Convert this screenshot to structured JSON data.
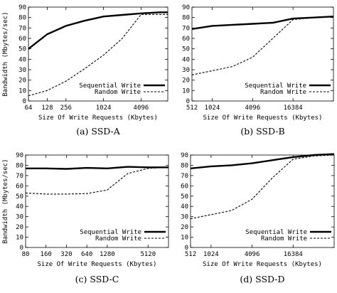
{
  "charts": [
    {
      "caption": "(a) SSD-A",
      "xlabel": "Size Of Write Requests (Kbytes)",
      "ylabel": "Bandwidth (Mbytes/sec)",
      "xticks": [
        "64",
        "128",
        "256",
        "1024",
        "4096"
      ],
      "yticks": [
        "0",
        "10",
        "20",
        "30",
        "40",
        "50",
        "60",
        "70",
        "80",
        "90"
      ],
      "legend": [
        "Sequential Write",
        "Random Write"
      ]
    },
    {
      "caption": "(b) SSD-B",
      "xlabel": "Size Of Write Requests (Kbytes)",
      "ylabel": "",
      "xticks": [
        "512",
        "1024",
        "4096",
        "16384"
      ],
      "yticks": [
        "0",
        "10",
        "20",
        "30",
        "40",
        "50",
        "60",
        "70",
        "80",
        "90"
      ],
      "legend": [
        "Sequential Write",
        "Random Write"
      ]
    },
    {
      "caption": "(c) SSD-C",
      "xlabel": "Size Of Write Requests (Kbytes)",
      "ylabel": "Bandwidth (Mbytes/sec)",
      "xticks": [
        "80",
        "160",
        "320",
        "640",
        "1280",
        "5120"
      ],
      "yticks": [
        "0",
        "10",
        "20",
        "30",
        "40",
        "50",
        "60",
        "70",
        "80",
        "90"
      ],
      "legend": [
        "Sequential Write",
        "Random Write"
      ]
    },
    {
      "caption": "(d) SSD-D",
      "xlabel": "Size Of Write Requests (Kbytes)",
      "ylabel": "",
      "xticks": [
        "512",
        "1024",
        "4096",
        "16384"
      ],
      "yticks": [
        "0",
        "10",
        "20",
        "30",
        "40",
        "50",
        "60",
        "70",
        "80",
        "90"
      ],
      "legend": [
        "Sequential Write",
        "Random Write"
      ]
    }
  ],
  "chart_data": [
    {
      "type": "line",
      "title": "(a) SSD-A",
      "xlabel": "Size Of Write Requests (Kbytes)",
      "ylabel": "Bandwidth (Mbytes/sec)",
      "xscale": "log2",
      "xlim": [
        64,
        11000
      ],
      "ylim": [
        0,
        90
      ],
      "grid": false,
      "legend_position": "bottom-right",
      "series": [
        {
          "name": "Sequential Write",
          "style": "solid",
          "x": [
            64,
            128,
            256,
            512,
            1024,
            2048,
            4096,
            8192,
            11000
          ],
          "y": [
            50,
            64,
            72,
            77,
            81,
            82.5,
            84,
            85,
            85
          ]
        },
        {
          "name": "Random Write",
          "style": "dashed",
          "x": [
            64,
            128,
            256,
            512,
            1024,
            2048,
            4096,
            8192,
            11000
          ],
          "y": [
            5,
            10,
            19,
            31,
            44,
            60,
            83,
            83,
            83
          ]
        }
      ]
    },
    {
      "type": "line",
      "title": "(b) SSD-B",
      "xlabel": "Size Of Write Requests (Kbytes)",
      "ylabel": "",
      "xscale": "log2",
      "xlim": [
        512,
        65536
      ],
      "ylim": [
        0,
        90
      ],
      "grid": false,
      "legend_position": "bottom-right",
      "series": [
        {
          "name": "Sequential Write",
          "style": "solid",
          "x": [
            512,
            1024,
            2048,
            4096,
            8192,
            16384,
            32768,
            65536
          ],
          "y": [
            69,
            72,
            73,
            74,
            75,
            79,
            80,
            81
          ]
        },
        {
          "name": "Random Write",
          "style": "dashed",
          "x": [
            512,
            1024,
            2048,
            4096,
            8192,
            16384,
            32768,
            65536
          ],
          "y": [
            25,
            29,
            33,
            42,
            60,
            78,
            80,
            81
          ]
        }
      ]
    },
    {
      "type": "line",
      "title": "(c) SSD-C",
      "xlabel": "Size Of Write Requests (Kbytes)",
      "ylabel": "",
      "xscale": "log2",
      "xlim": [
        80,
        10240
      ],
      "ylim": [
        0,
        90
      ],
      "grid": false,
      "legend_position": "bottom-right",
      "series": [
        {
          "name": "Sequential Write",
          "style": "solid",
          "x": [
            80,
            160,
            320,
            640,
            1280,
            2560,
            5120,
            10240
          ],
          "y": [
            77,
            77,
            76.5,
            77.5,
            77,
            78.5,
            78,
            78
          ]
        },
        {
          "name": "Random Write",
          "style": "dashed",
          "x": [
            80,
            160,
            320,
            640,
            1280,
            2560,
            5120,
            10240
          ],
          "y": [
            53,
            52,
            52,
            52.5,
            56,
            72,
            77,
            78
          ]
        }
      ]
    },
    {
      "type": "line",
      "title": "(d) SSD-D",
      "xlabel": "Size Of Write Requests (Kbytes)",
      "ylabel": "",
      "xscale": "log2",
      "xlim": [
        512,
        65536
      ],
      "ylim": [
        0,
        90
      ],
      "grid": false,
      "legend_position": "bottom-right",
      "series": [
        {
          "name": "Sequential Write",
          "style": "solid",
          "x": [
            512,
            1024,
            2048,
            4096,
            8192,
            16384,
            32768,
            65536
          ],
          "y": [
            77,
            79,
            80,
            82,
            85,
            88,
            90,
            91
          ]
        },
        {
          "name": "Random Write",
          "style": "dashed",
          "x": [
            512,
            1024,
            2048,
            4096,
            8192,
            16384,
            32768,
            65536
          ],
          "y": [
            28,
            32,
            36,
            47,
            68,
            86,
            89,
            90
          ]
        }
      ]
    }
  ]
}
